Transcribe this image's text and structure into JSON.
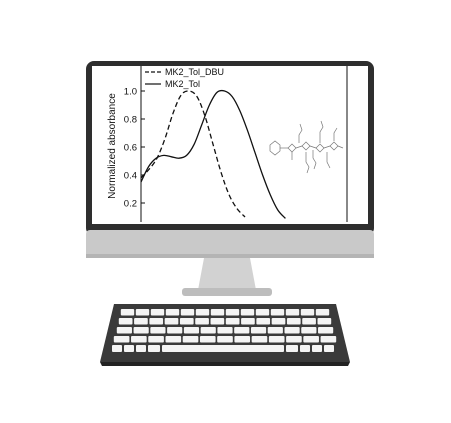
{
  "chart_data": {
    "type": "line",
    "ylabel": "Normalized absorbance",
    "y_ticks": [
      "1.0",
      "0.8",
      "0.6",
      "0.4",
      "0.2"
    ],
    "ylim": [
      0.1,
      1.1
    ],
    "legend_placement": "top-left",
    "series": [
      {
        "name": "MK2_Tol_DBU",
        "style": "dashed",
        "color": "#111111",
        "points": [
          [
            0,
            0.38
          ],
          [
            1,
            0.44
          ],
          [
            2,
            0.52
          ],
          [
            3,
            0.66
          ],
          [
            4,
            0.84
          ],
          [
            5,
            0.97
          ],
          [
            6,
            1.0
          ],
          [
            7,
            0.96
          ],
          [
            8,
            0.82
          ],
          [
            9,
            0.62
          ],
          [
            10,
            0.42
          ],
          [
            11,
            0.26
          ],
          [
            12,
            0.16
          ],
          [
            13,
            0.1
          ]
        ]
      },
      {
        "name": "MK2_Tol",
        "style": "solid",
        "color": "#111111",
        "points": [
          [
            0,
            0.35
          ],
          [
            1,
            0.46
          ],
          [
            2,
            0.52
          ],
          [
            3,
            0.54
          ],
          [
            4,
            0.53
          ],
          [
            5,
            0.52
          ],
          [
            6,
            0.54
          ],
          [
            7,
            0.62
          ],
          [
            8,
            0.76
          ],
          [
            9,
            0.9
          ],
          [
            10,
            0.99
          ],
          [
            11,
            1.0
          ],
          [
            12,
            0.96
          ],
          [
            13,
            0.86
          ],
          [
            14,
            0.72
          ],
          [
            15,
            0.56
          ],
          [
            16,
            0.4
          ],
          [
            17,
            0.26
          ],
          [
            18,
            0.15
          ],
          [
            19,
            0.09
          ]
        ]
      }
    ]
  },
  "colors": {
    "screen_bezel": "#2e2e2e",
    "monitor_chin": "#c8c8c8",
    "stand": "#d2d2d2",
    "keyboard_body": "#3a3a3a",
    "keys": "#f4f4f4"
  }
}
